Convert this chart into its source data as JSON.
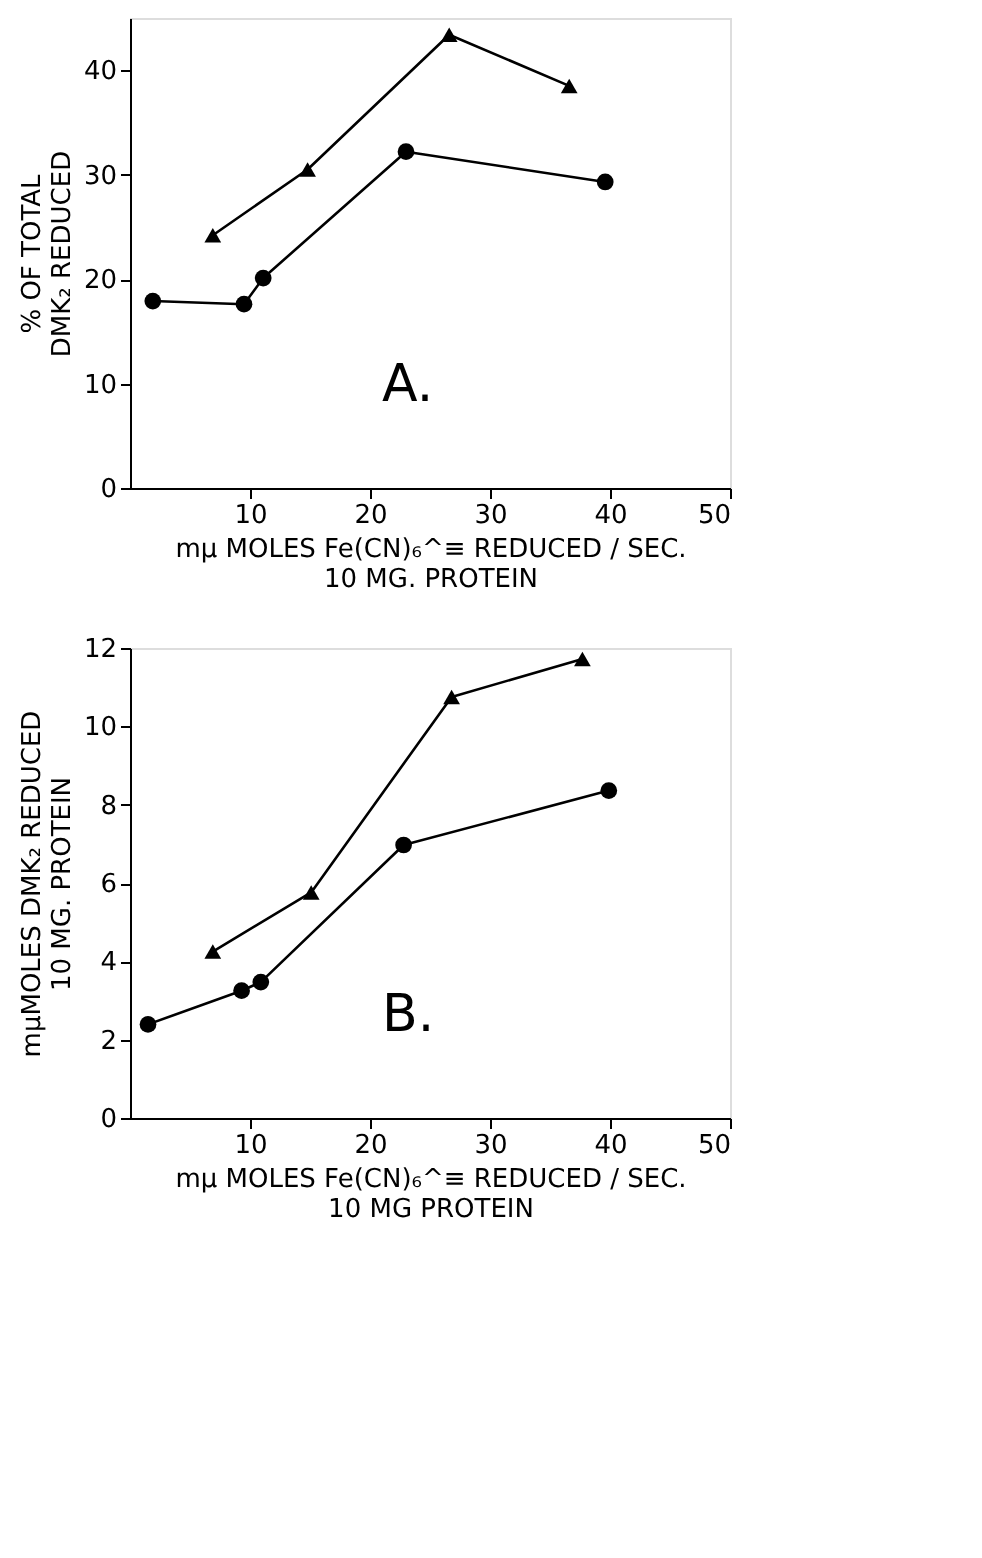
{
  "chart_data": [
    {
      "type": "line",
      "xlabel": "mμ MOLES  Fe(CN)₆^≡ REDUCED / SEC.\n10 MG. PROTEIN",
      "ylabel": "% OF TOTAL\nDMK₂ REDUCED",
      "annotations": [
        "A."
      ],
      "line_style": "solid",
      "xlim": [
        0,
        50
      ],
      "xticks": [
        10,
        20,
        30,
        40,
        50
      ],
      "ylim": [
        0,
        45
      ],
      "yticks": [
        0,
        10,
        20,
        30,
        40
      ],
      "series": [
        {
          "color": "#000000",
          "marker": "circle",
          "x": [
            1.9,
            9.5,
            11.1,
            23,
            39.6
          ],
          "values": [
            17.9,
            17.6,
            20.1,
            32.2,
            29.3
          ]
        },
        {
          "color": "#000000",
          "marker": "triangle",
          "x": [
            6.9,
            14.8,
            26.6,
            36.6
          ],
          "values": [
            24.2,
            30.5,
            43.4,
            38.5
          ]
        }
      ]
    },
    {
      "type": "line",
      "xlabel": "mμ MOLES  Fe(CN)₆^≡ REDUCED / SEC.\n10 MG PROTEIN",
      "ylabel": "mμMOLES  DMK₂  REDUCED\n10 MG. PROTEIN",
      "annotations": [
        "B."
      ],
      "line_style": "solid",
      "xlim": [
        0,
        50
      ],
      "xticks": [
        10,
        20,
        30,
        40,
        50
      ],
      "ylim": [
        0,
        12
      ],
      "yticks": [
        0,
        2,
        4,
        6,
        8,
        10,
        12
      ],
      "series": [
        {
          "color": "#000000",
          "marker": "circle",
          "x": [
            1.5,
            9.3,
            10.9,
            22.8,
            39.9
          ],
          "values": [
            2.39,
            3.25,
            3.47,
            6.97,
            8.36
          ]
        },
        {
          "color": "#000000",
          "marker": "triangle",
          "x": [
            6.9,
            15.1,
            26.8,
            37.7
          ],
          "values": [
            4.25,
            5.76,
            10.75,
            11.72
          ]
        }
      ]
    }
  ]
}
